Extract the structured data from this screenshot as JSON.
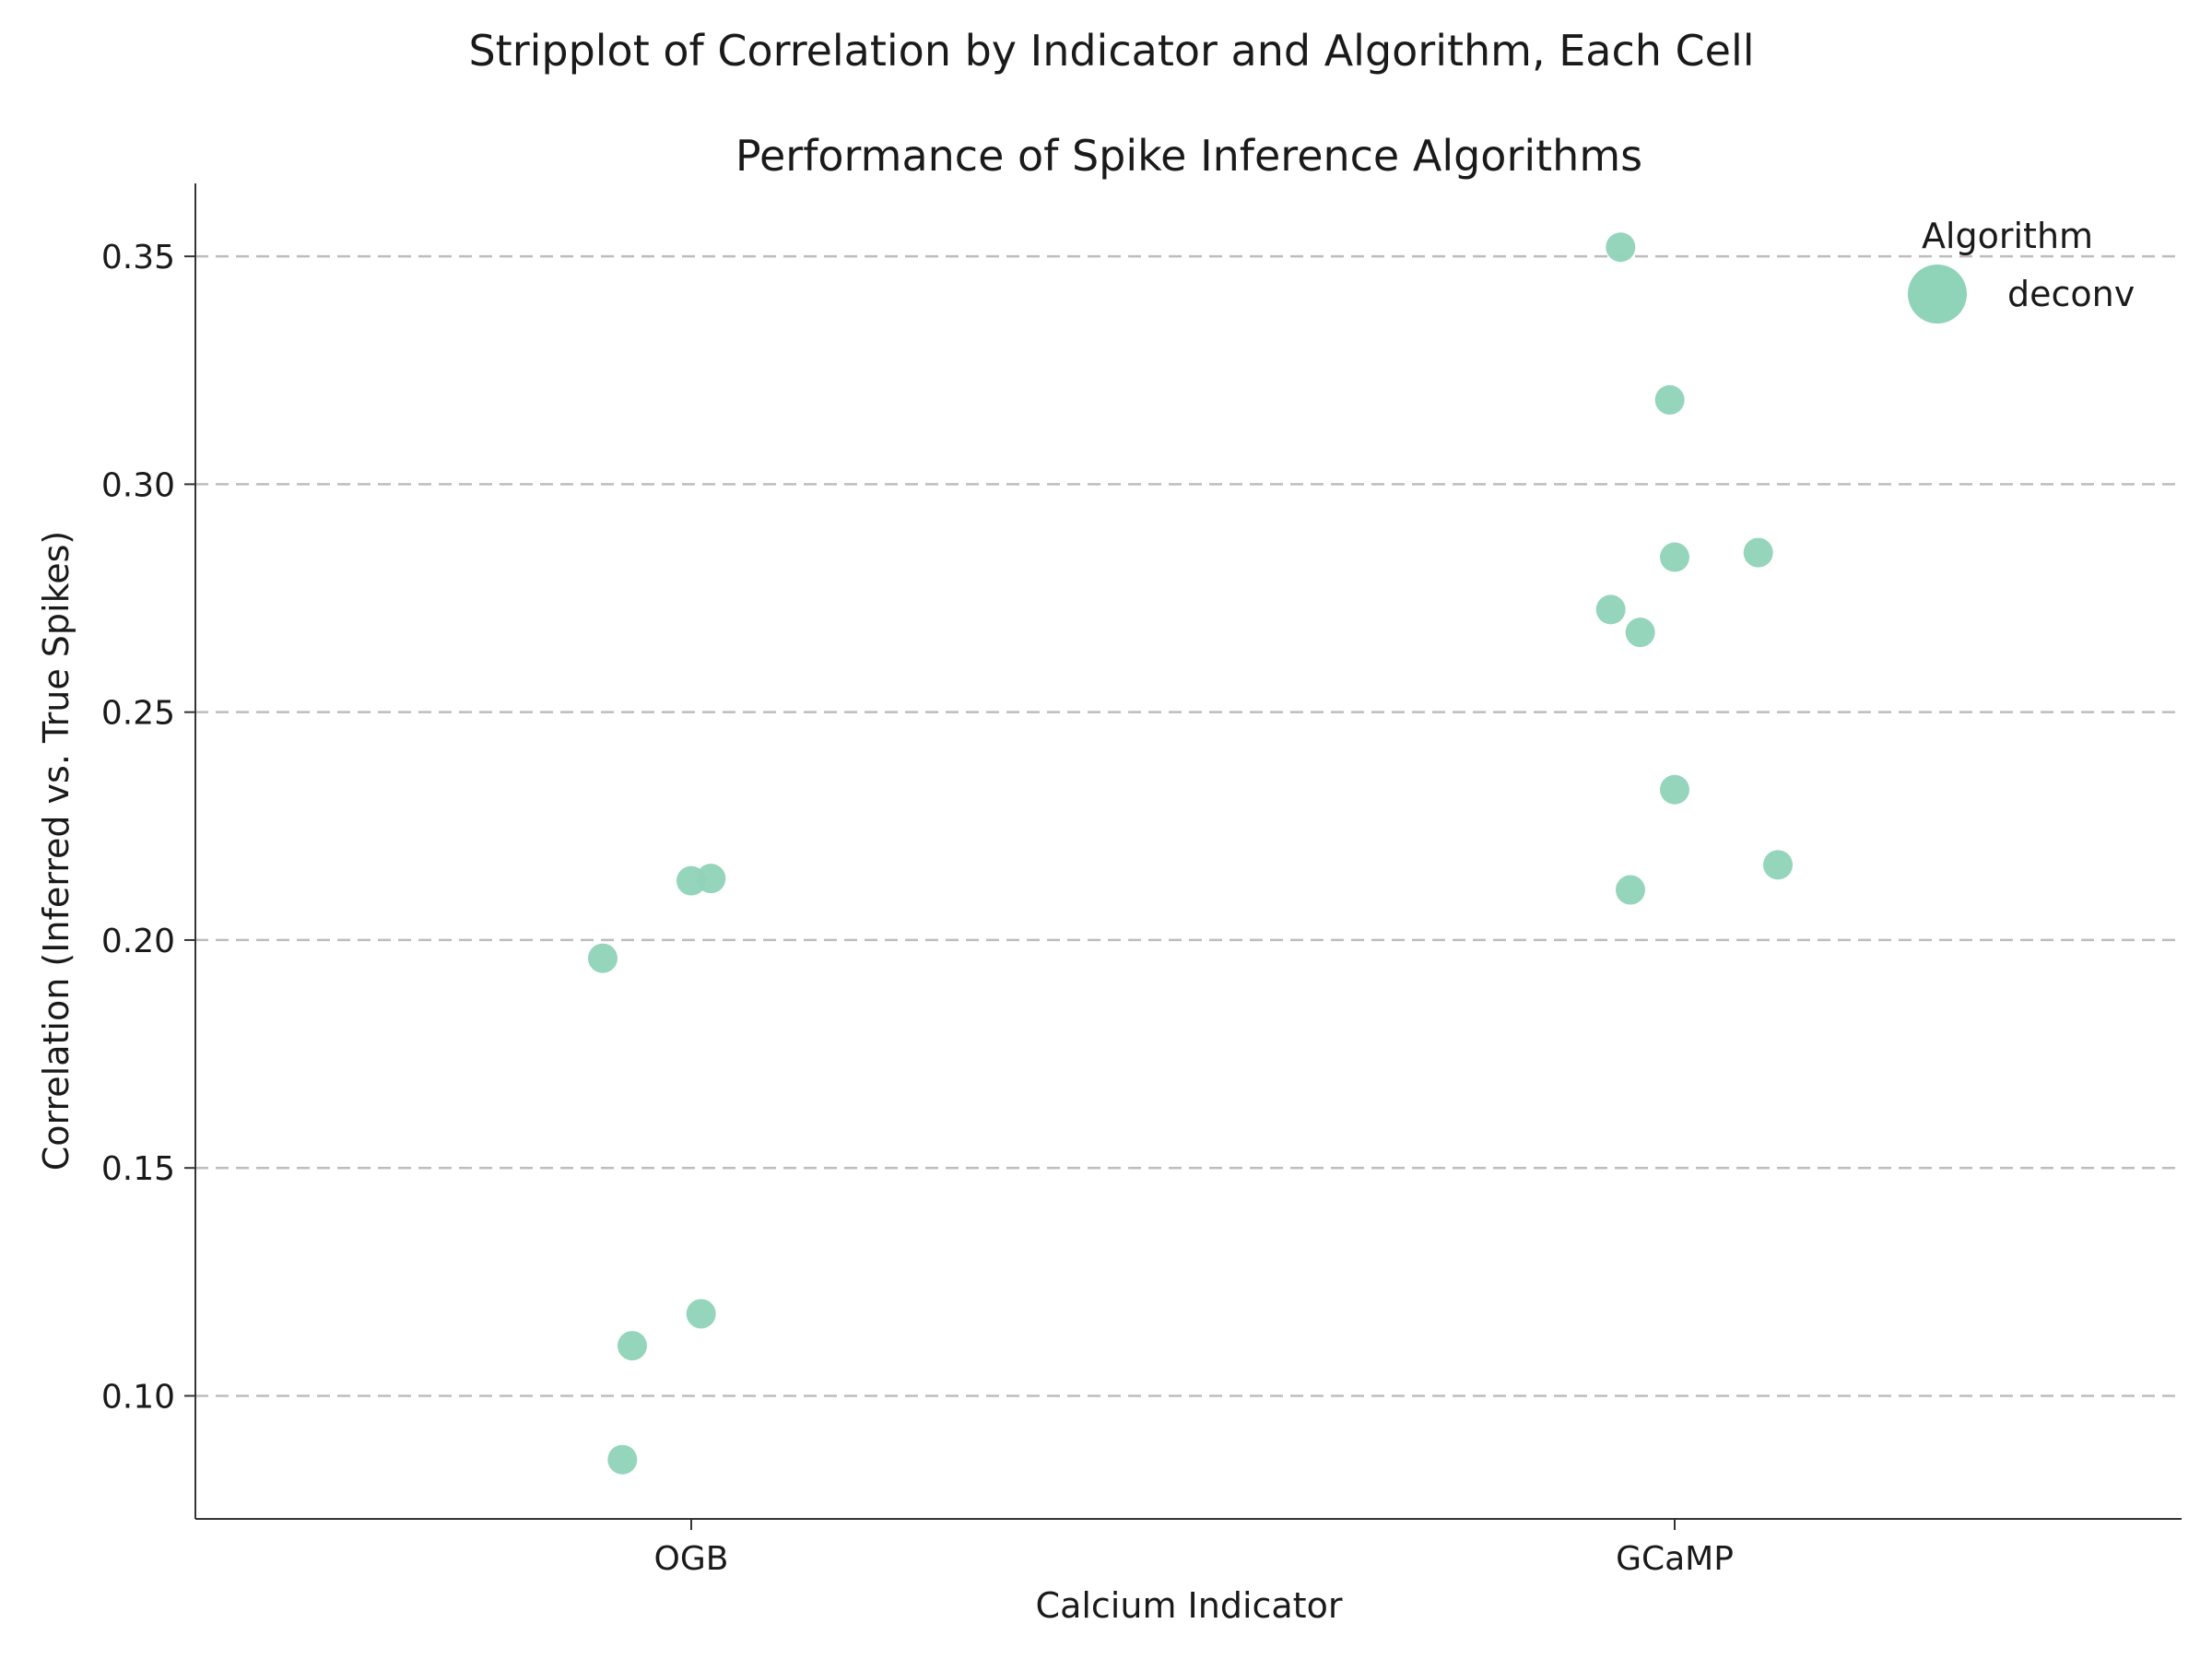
{
  "chart_data": {
    "type": "scatter",
    "suptitle": "Stripplot of Correlation by Indicator and Algorithm, Each Cell",
    "title": "Performance of Spike Inference Algorithms",
    "xlabel": "Calcium Indicator",
    "ylabel": "Correlation (Inferred vs. True Spikes)",
    "categories": [
      "OGB",
      "GCaMP"
    ],
    "ylim": [
      0.073,
      0.366
    ],
    "yticks": [
      "0.10",
      "0.15",
      "0.20",
      "0.25",
      "0.30",
      "0.35"
    ],
    "grid": "y-dashed",
    "legend": {
      "title": "Algorithm",
      "placement": "top-right"
    },
    "series": [
      {
        "name": "deconv",
        "color": "#8fd3b8",
        "points": [
          {
            "category": "OGB",
            "jitter": -0.09,
            "y": 0.196
          },
          {
            "category": "OGB",
            "jitter": 0.0,
            "y": 0.213
          },
          {
            "category": "OGB",
            "jitter": 0.02,
            "y": 0.2135
          },
          {
            "category": "OGB",
            "jitter": 0.01,
            "y": 0.118
          },
          {
            "category": "OGB",
            "jitter": -0.06,
            "y": 0.111
          },
          {
            "category": "OGB",
            "jitter": -0.07,
            "y": 0.086
          },
          {
            "category": "GCaMP",
            "jitter": -0.055,
            "y": 0.352
          },
          {
            "category": "GCaMP",
            "jitter": -0.005,
            "y": 0.3185
          },
          {
            "category": "GCaMP",
            "jitter": 0.0,
            "y": 0.284
          },
          {
            "category": "GCaMP",
            "jitter": 0.085,
            "y": 0.285
          },
          {
            "category": "GCaMP",
            "jitter": -0.065,
            "y": 0.2725
          },
          {
            "category": "GCaMP",
            "jitter": -0.035,
            "y": 0.2675
          },
          {
            "category": "GCaMP",
            "jitter": 0.0,
            "y": 0.233
          },
          {
            "category": "GCaMP",
            "jitter": 0.105,
            "y": 0.2165
          },
          {
            "category": "GCaMP",
            "jitter": -0.045,
            "y": 0.211
          }
        ]
      }
    ]
  }
}
